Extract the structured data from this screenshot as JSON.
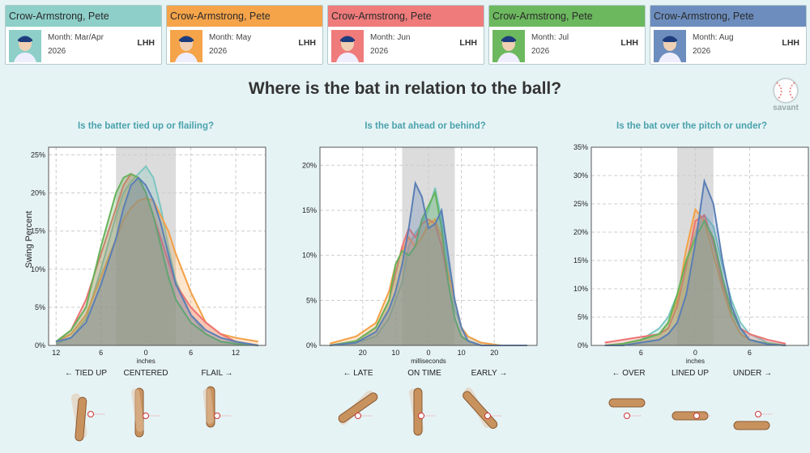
{
  "cards": [
    {
      "name": "Crow-Armstrong, Pete",
      "month": "Month: Mar/Apr",
      "year": "2026",
      "hand": "LHH",
      "color": "#8ecfc9"
    },
    {
      "name": "Crow-Armstrong, Pete",
      "month": "Month: May",
      "year": "2026",
      "hand": "LHH",
      "color": "#f5a44a"
    },
    {
      "name": "Crow-Armstrong, Pete",
      "month": "Month: Jun",
      "year": "2026",
      "hand": "LHH",
      "color": "#ef7b7b"
    },
    {
      "name": "Crow-Armstrong, Pete",
      "month": "Month: Jul",
      "year": "2026",
      "hand": "LHH",
      "color": "#6cb85e"
    },
    {
      "name": "Crow-Armstrong, Pete",
      "month": "Month: Aug",
      "year": "2026",
      "hand": "LHH",
      "color": "#6c8dbd"
    }
  ],
  "title": "Where is the bat in relation to the ball?",
  "logo_text": "savant",
  "ylabel": "Swing Percent",
  "chart_data": [
    {
      "type": "area",
      "title": "Is the batter tied up or flailing?",
      "xlabel": "inches",
      "x_ticks": [
        -12,
        -6,
        0,
        6,
        12
      ],
      "x_tick_labels": [
        "12",
        "6",
        "0",
        "6",
        "12"
      ],
      "xlim": [
        -13,
        16
      ],
      "ylim": [
        0,
        26
      ],
      "y_ticks": [
        0,
        5,
        10,
        15,
        20,
        25
      ],
      "y_tick_labels": [
        "0%",
        "5%",
        "10%",
        "15%",
        "20%",
        "25%"
      ],
      "band": [
        -4,
        4
      ],
      "captions": [
        "← TIED UP",
        "CENTERED",
        "FLAIL →"
      ],
      "series": [
        {
          "x": [
            -12,
            -10,
            -8,
            -6,
            -4,
            -3,
            -2,
            -1,
            0,
            1,
            2,
            3,
            4,
            6,
            8,
            10,
            12,
            15
          ],
          "values": [
            0.2,
            1,
            3.5,
            10,
            17,
            20,
            21.5,
            22.5,
            23.5,
            22,
            18,
            13,
            8.5,
            4,
            1.5,
            0.5,
            0.3,
            0
          ],
          "color": "#7cc6c0"
        },
        {
          "x": [
            -12,
            -10,
            -8,
            -6,
            -4,
            -3,
            -2,
            -1,
            0,
            1,
            2,
            3,
            4,
            6,
            8,
            10,
            12,
            15
          ],
          "values": [
            0.5,
            1.5,
            4,
            9,
            14,
            16.5,
            18,
            19,
            19.3,
            19,
            17,
            15,
            12,
            7,
            3,
            1.5,
            1,
            0.5
          ],
          "color": "#f3a047"
        },
        {
          "x": [
            -12,
            -10,
            -8,
            -6,
            -4,
            -3,
            -2,
            -1,
            0,
            1,
            2,
            3,
            4,
            6,
            8,
            10,
            12,
            15
          ],
          "values": [
            0.5,
            2,
            6,
            12,
            18,
            21,
            22.5,
            22,
            20,
            17,
            14,
            11,
            8,
            5,
            3,
            1.5,
            0.5,
            0
          ],
          "color": "#ec7374"
        },
        {
          "x": [
            -12,
            -10,
            -8,
            -6,
            -4,
            -3,
            -2,
            -1,
            0,
            1,
            2,
            3,
            4,
            6,
            8,
            10,
            12,
            15
          ],
          "values": [
            0.5,
            2,
            5,
            13,
            20,
            22,
            22.5,
            22,
            20,
            17,
            13,
            9,
            6,
            3,
            1.5,
            0.5,
            0.2,
            0
          ],
          "color": "#66b35a"
        },
        {
          "x": [
            -12,
            -10,
            -8,
            -6,
            -4,
            -3,
            -2,
            -1,
            0,
            1,
            2,
            3,
            4,
            6,
            8,
            10,
            12,
            15
          ],
          "values": [
            0.5,
            1,
            3,
            8,
            14,
            18,
            21,
            22,
            21,
            19,
            16,
            12,
            8,
            4,
            2,
            1,
            0.5,
            0
          ],
          "color": "#5b7fb5"
        }
      ]
    },
    {
      "type": "area",
      "title": "Is the bat ahead or behind?",
      "xlabel": "milliseconds",
      "x_ticks": [
        -20,
        -10,
        0,
        10,
        20
      ],
      "x_tick_labels": [
        "20",
        "10",
        "0",
        "10",
        "20"
      ],
      "xlim": [
        -33,
        33
      ],
      "ylim": [
        0,
        22
      ],
      "y_ticks": [
        0,
        5,
        10,
        15,
        20
      ],
      "y_tick_labels": [
        "0%",
        "5%",
        "10%",
        "15%",
        "20%"
      ],
      "band": [
        -8,
        8
      ],
      "captions": [
        "← LATE",
        "ON TIME",
        "EARLY →"
      ],
      "series": [
        {
          "x": [
            -30,
            -22,
            -16,
            -12,
            -10,
            -8,
            -6,
            -4,
            -2,
            0,
            2,
            4,
            6,
            8,
            10,
            12,
            16,
            22,
            30
          ],
          "values": [
            0,
            0.3,
            1,
            3,
            5,
            7,
            11,
            12.5,
            13.5,
            15,
            17.5,
            14,
            9,
            4,
            2,
            1,
            0.3,
            0,
            0
          ],
          "color": "#7cc6c0"
        },
        {
          "x": [
            -30,
            -22,
            -16,
            -12,
            -10,
            -8,
            -6,
            -4,
            -2,
            0,
            2,
            4,
            6,
            8,
            10,
            12,
            16,
            22,
            30
          ],
          "values": [
            0.2,
            1,
            2.5,
            6,
            9,
            10.5,
            12,
            11,
            12,
            13.5,
            14,
            12,
            8,
            5,
            2,
            1,
            0.3,
            0,
            0
          ],
          "color": "#f3a047"
        },
        {
          "x": [
            -30,
            -22,
            -16,
            -12,
            -10,
            -8,
            -6,
            -4,
            -2,
            0,
            2,
            4,
            6,
            8,
            10,
            12,
            16,
            22,
            30
          ],
          "values": [
            0,
            0.5,
            2,
            5,
            8,
            11,
            13,
            12,
            13.5,
            14,
            13.5,
            11,
            7,
            3,
            1,
            0.5,
            0,
            0,
            0
          ],
          "color": "#ec7374"
        },
        {
          "x": [
            -30,
            -22,
            -16,
            -12,
            -10,
            -8,
            -6,
            -4,
            -2,
            0,
            2,
            4,
            6,
            8,
            10,
            12,
            16,
            22,
            30
          ],
          "values": [
            0,
            0.5,
            2,
            5,
            9,
            10.5,
            10,
            11,
            14,
            15.5,
            17,
            13,
            7,
            3,
            1,
            0.5,
            0,
            0,
            0
          ],
          "color": "#66b35a"
        },
        {
          "x": [
            -30,
            -22,
            -16,
            -12,
            -10,
            -8,
            -6,
            -4,
            -2,
            0,
            2,
            4,
            6,
            8,
            10,
            12,
            16,
            22,
            30
          ],
          "values": [
            0,
            0.3,
            1.5,
            4,
            6,
            9,
            13,
            18,
            16.5,
            13,
            13.5,
            15,
            10,
            5,
            2,
            0.5,
            0,
            0,
            0
          ],
          "color": "#5b7fb5"
        }
      ]
    },
    {
      "type": "area",
      "title": "Is the bat over the pitch or under?",
      "xlabel": "inches",
      "x_ticks": [
        -6,
        0,
        6
      ],
      "x_tick_labels": [
        "6",
        "0",
        "6"
      ],
      "xlim": [
        -11.5,
        12.5
      ],
      "ylim": [
        0,
        35
      ],
      "y_ticks": [
        0,
        5,
        10,
        15,
        20,
        25,
        30,
        35
      ],
      "y_tick_labels": [
        "0%",
        "5%",
        "10%",
        "15%",
        "20%",
        "25%",
        "30%",
        "35%"
      ],
      "band": [
        -2,
        2
      ],
      "captions": [
        "← OVER",
        "LINED UP",
        "UNDER →"
      ],
      "series": [
        {
          "x": [
            -10,
            -8,
            -6,
            -4,
            -3,
            -2,
            -1,
            0,
            1,
            2,
            3,
            4,
            5,
            6,
            8,
            10
          ],
          "values": [
            0,
            0.3,
            1,
            3,
            5,
            9,
            15,
            20,
            23,
            21,
            14,
            8,
            4,
            2,
            0.5,
            0
          ],
          "color": "#7cc6c0"
        },
        {
          "x": [
            -10,
            -8,
            -6,
            -4,
            -3,
            -2,
            -1,
            0,
            1,
            2,
            3,
            4,
            5,
            6,
            8,
            10
          ],
          "values": [
            0,
            0.3,
            1,
            2,
            4,
            8,
            17,
            24,
            22,
            16,
            10,
            5,
            2,
            1,
            0.3,
            0
          ],
          "color": "#f3a047"
        },
        {
          "x": [
            -10,
            -8,
            -6,
            -4,
            -3,
            -2,
            -1,
            0,
            1,
            2,
            3,
            4,
            5,
            6,
            8,
            10
          ],
          "values": [
            0.5,
            1,
            1.5,
            2,
            3,
            7,
            14,
            22,
            23,
            18,
            11,
            6,
            3,
            2,
            1,
            0.3
          ],
          "color": "#ec7374"
        },
        {
          "x": [
            -10,
            -8,
            -6,
            -4,
            -3,
            -2,
            -1,
            0,
            1,
            2,
            3,
            4,
            5,
            6,
            8,
            10
          ],
          "values": [
            0,
            0.3,
            1,
            2,
            4,
            9,
            15,
            19,
            22,
            19,
            12,
            6,
            3,
            1,
            0.3,
            0
          ],
          "color": "#66b35a"
        },
        {
          "x": [
            -10,
            -8,
            -6,
            -4,
            -3,
            -2,
            -1,
            0,
            1,
            2,
            3,
            4,
            5,
            6,
            8,
            10
          ],
          "values": [
            0,
            0,
            0.5,
            1,
            2,
            4,
            9,
            18,
            29,
            25,
            15,
            7,
            3,
            1,
            0.2,
            0
          ],
          "color": "#5b7fb5"
        }
      ]
    }
  ]
}
